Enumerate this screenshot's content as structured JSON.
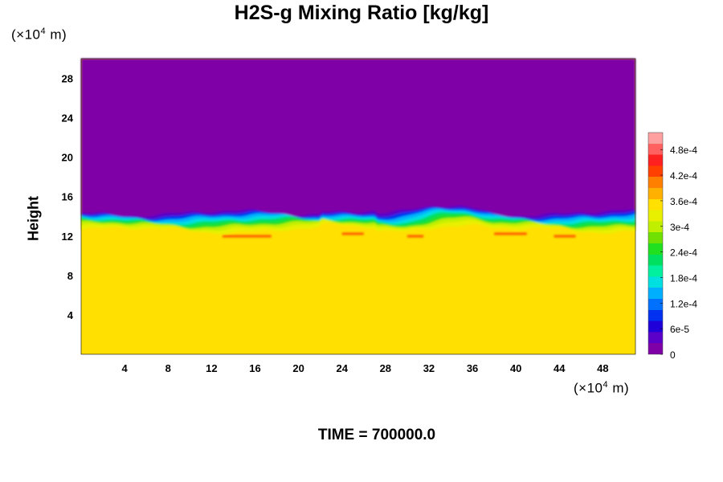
{
  "title": "H2S-g Mixing Ratio [kg/kg]",
  "y_unit": {
    "prefix": "(×10",
    "exp": "4",
    "suffix": " m)"
  },
  "x_unit": {
    "prefix": "(×10",
    "exp": "4",
    "suffix": " m)"
  },
  "footer": "TIME = 700000.0",
  "chart_data": {
    "type": "heatmap",
    "title": "H2S-g Mixing Ratio [kg/kg]",
    "xlabel": "",
    "ylabel": "Height",
    "x_unit": "×10^4 m",
    "y_unit": "×10^4 m",
    "xlim": [
      0,
      51
    ],
    "ylim": [
      0,
      30
    ],
    "x_ticks": [
      4,
      8,
      12,
      16,
      20,
      24,
      28,
      32,
      36,
      40,
      44,
      48
    ],
    "y_ticks": [
      4,
      8,
      12,
      16,
      20,
      24,
      28
    ],
    "colorbar": {
      "min": 0,
      "max": 0.00052,
      "tick_values": [
        0,
        6e-05,
        0.00012,
        0.00018,
        0.00024,
        0.0003,
        0.00036,
        0.00042,
        0.00048
      ],
      "tick_labels": [
        "0",
        "6e-5",
        "1.2e-4",
        "1.8e-4",
        "2.4e-4",
        "3e-4",
        "3.6e-4",
        "4.2e-4",
        "4.8e-4"
      ],
      "colors": [
        "#8000a8",
        "#5a00c8",
        "#2000d8",
        "#0030f0",
        "#0070ff",
        "#00b0ff",
        "#00e0e0",
        "#00f0a0",
        "#00e060",
        "#20e020",
        "#70e000",
        "#c0f000",
        "#e8f000",
        "#ffe000",
        "#ffb000",
        "#ff8000",
        "#ff4000",
        "#ff2020",
        "#ff6060",
        "#ffa0a0"
      ]
    },
    "layers": [
      {
        "region": "upper",
        "y_range": [
          14.5,
          30
        ],
        "value": 0
      },
      {
        "region": "transition",
        "y_range": [
          12,
          14.5
        ],
        "value_range": [
          6e-05,
          0.0003
        ]
      },
      {
        "region": "lower",
        "y_range": [
          0,
          12
        ],
        "value": 0.00035
      }
    ],
    "grid": false
  }
}
